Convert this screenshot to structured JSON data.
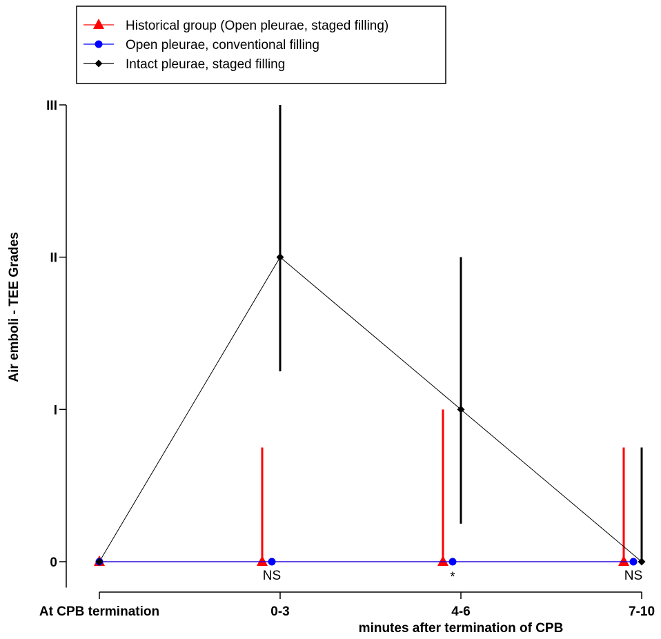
{
  "chart_data": {
    "type": "line",
    "title": "",
    "xlabel": "minutes after termination of CPB",
    "ylabel": "Air emboli - TEE Grades",
    "categories": [
      "At CPB termination",
      "0-3",
      "4-6",
      "7-10"
    ],
    "y_ticks": [
      {
        "value": 0,
        "label": "0"
      },
      {
        "value": 1,
        "label": "I"
      },
      {
        "value": 2,
        "label": "II"
      },
      {
        "value": 3,
        "label": "III"
      }
    ],
    "ylim": [
      -0.17,
      3
    ],
    "grid": false,
    "legend_position": "top-left",
    "series": [
      {
        "name": "Historical group (Open pleurae, staged filling)",
        "color": "#ff0000",
        "marker": "triangle",
        "values": [
          0,
          0,
          0,
          0
        ],
        "error_upper": [
          0,
          0.75,
          1,
          0.75
        ],
        "error_lower": [
          0,
          0,
          0,
          0
        ]
      },
      {
        "name": "Open pleurae, conventional filling",
        "color": "#0000ff",
        "marker": "circle",
        "values": [
          0,
          0,
          0,
          0
        ],
        "error_upper": [
          0,
          0,
          0,
          0
        ],
        "error_lower": [
          0,
          0,
          0,
          0
        ]
      },
      {
        "name": "Intact pleurae, staged filling",
        "color": "#000000",
        "marker": "diamond",
        "values": [
          0,
          2,
          1,
          0
        ],
        "error_upper": [
          0,
          3,
          2,
          0.75
        ],
        "error_lower": [
          0,
          1.25,
          0.25,
          0
        ]
      }
    ],
    "annotations": [
      {
        "category_index": 1,
        "text": "NS"
      },
      {
        "category_index": 2,
        "text": "*"
      },
      {
        "category_index": 3,
        "text": "NS"
      }
    ]
  }
}
